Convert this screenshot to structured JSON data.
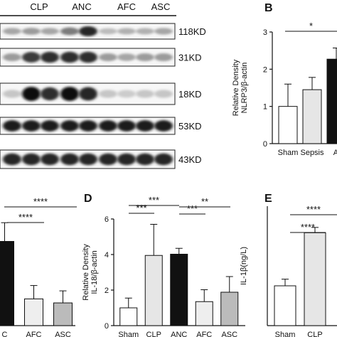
{
  "blot": {
    "lane_labels": [
      "CLP",
      "ANC",
      "AFC",
      "ASC"
    ],
    "bands": [
      {
        "size": "118KD",
        "intensities": [
          0.3,
          0.35,
          0.3,
          0.5,
          0.9,
          0.2,
          0.25,
          0.25,
          0.3
        ]
      },
      {
        "size": "31KD",
        "intensities": [
          0.35,
          0.8,
          0.85,
          0.85,
          0.85,
          0.35,
          0.3,
          0.35,
          0.35
        ]
      },
      {
        "size": "18KD",
        "intensities": [
          0.15,
          1.0,
          0.85,
          1.0,
          0.9,
          0.15,
          0.12,
          0.15,
          0.15
        ]
      },
      {
        "size": "53KD",
        "intensities": [
          0.95,
          0.95,
          0.95,
          0.95,
          0.95,
          0.95,
          0.95,
          0.95,
          0.95
        ]
      },
      {
        "size": "43KD",
        "intensities": [
          0.9,
          0.9,
          0.9,
          0.9,
          0.9,
          0.9,
          0.9,
          0.9,
          0.9
        ]
      }
    ]
  },
  "chart_data": [
    {
      "panel": "B",
      "type": "bar",
      "ylabel_lines": [
        "Relative Density",
        "NLRP3/β-actin"
      ],
      "ylim": [
        0,
        3
      ],
      "yticks": [
        "0",
        "1",
        "2",
        "3"
      ],
      "categories": [
        "Sham",
        "Sepsis",
        "A..."
      ],
      "values": [
        1.0,
        1.45,
        2.27
      ],
      "errors": [
        0.6,
        0.33,
        0.3
      ],
      "colors": [
        "#ffffff",
        "#e6e6e6",
        "#111111"
      ],
      "annotations": [
        {
          "text": "*",
          "from": 0,
          "to": 2
        }
      ]
    },
    {
      "panel": "C",
      "type": "bar",
      "categories": [
        "ANC",
        "AFC",
        "ASC"
      ],
      "tick_labels": [
        "C",
        "AFC",
        "ASC"
      ],
      "values": [
        3.15,
        1.0,
        0.85
      ],
      "errors": [
        0.7,
        0.5,
        0.45
      ],
      "colors": [
        "#111111",
        "#eeeeee",
        "#bbbbbb"
      ],
      "annotations": [
        {
          "text": "****",
          "from": 0,
          "to": 2
        },
        {
          "text": "****",
          "from": 0,
          "to": 1
        }
      ]
    },
    {
      "panel": "D",
      "type": "bar",
      "ylabel_lines": [
        "Relative Density",
        "IL-18/β-actin"
      ],
      "ylim": [
        0,
        6
      ],
      "yticks": [
        "0",
        "2",
        "4",
        "6"
      ],
      "categories": [
        "Sham",
        "CLP",
        "ANC",
        "AFC",
        "ASC"
      ],
      "values": [
        1.0,
        3.95,
        4.02,
        1.35,
        1.88
      ],
      "errors": [
        0.55,
        1.75,
        0.33,
        0.67,
        0.88
      ],
      "colors": [
        "#ffffff",
        "#e6e6e6",
        "#111111",
        "#eeeeee",
        "#bbbbbb"
      ],
      "annotations": [
        {
          "text": "***",
          "from": 0,
          "to": 2
        },
        {
          "text": "***",
          "from": 0,
          "to": 1
        },
        {
          "text": "**",
          "from": 2,
          "to": 4
        },
        {
          "text": "***",
          "from": 2,
          "to": 3
        }
      ]
    },
    {
      "panel": "E",
      "type": "bar",
      "ylabel": "IL-1β(ng/L)",
      "categories": [
        "Sham",
        "CLP"
      ],
      "tick_labels": [
        "Sham",
        "CLP"
      ],
      "values": [
        75,
        95
      ],
      "errors": [
        2.5,
        2.0
      ],
      "colors": [
        "#ffffff",
        "#e6e6e6"
      ],
      "annotations": [
        {
          "text": "****",
          "from": 0,
          "to": 2
        },
        {
          "text": "****",
          "from": 0,
          "to": 1
        }
      ]
    }
  ],
  "panel_letters": {
    "b": "B",
    "d": "D",
    "e": "E"
  }
}
